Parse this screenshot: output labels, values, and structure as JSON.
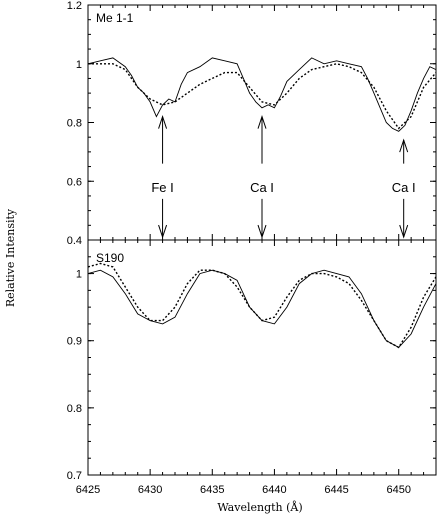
{
  "chart_data": {
    "type": "line",
    "xlabel": "Wavelength (Å)",
    "ylabel": "Relative Intensity",
    "x_ticks": [
      6425,
      6430,
      6435,
      6440,
      6445,
      6450
    ],
    "xlim": [
      6425,
      6453
    ],
    "colors": {
      "axes": "#000000",
      "observed": "#000000",
      "model": "#000000"
    },
    "panels": [
      {
        "label": "Me 1-1",
        "ylim": [
          0.4,
          1.2
        ],
        "y_ticks": [
          "0.4",
          "0.6",
          "0.8",
          "1",
          "1.2"
        ],
        "series": [
          {
            "style": "solid",
            "x": [
              6425,
              6426,
              6427,
              6428,
              6428.5,
              6429,
              6429.5,
              6430,
              6430.5,
              6431,
              6431.5,
              6432,
              6432.5,
              6433,
              6434,
              6435,
              6436,
              6437,
              6437.5,
              6438,
              6438.5,
              6439,
              6439.5,
              6440,
              6440.5,
              6441,
              6442,
              6443,
              6444,
              6445,
              6446,
              6447,
              6447.5,
              6448,
              6448.5,
              6449,
              6449.5,
              6450,
              6450.5,
              6451,
              6451.5,
              6452,
              6452.5,
              6453
            ],
            "y": [
              1.0,
              1.01,
              1.02,
              0.99,
              0.96,
              0.92,
              0.9,
              0.87,
              0.82,
              0.86,
              0.88,
              0.87,
              0.93,
              0.97,
              0.99,
              1.02,
              1.01,
              1.0,
              0.95,
              0.9,
              0.87,
              0.85,
              0.86,
              0.85,
              0.89,
              0.94,
              0.98,
              1.02,
              1.0,
              1.01,
              1.0,
              0.99,
              0.95,
              0.9,
              0.85,
              0.8,
              0.78,
              0.77,
              0.79,
              0.84,
              0.9,
              0.95,
              0.99,
              0.98
            ]
          },
          {
            "style": "dotted",
            "x": [
              6425,
              6427,
              6428,
              6429,
              6430,
              6431,
              6432,
              6433,
              6434,
              6435,
              6436,
              6437,
              6438,
              6439,
              6440,
              6441,
              6442,
              6443,
              6444,
              6445,
              6446,
              6447,
              6448,
              6449,
              6450,
              6451,
              6452,
              6453
            ],
            "y": [
              1.0,
              1.0,
              0.98,
              0.92,
              0.88,
              0.86,
              0.87,
              0.9,
              0.93,
              0.95,
              0.97,
              0.97,
              0.92,
              0.87,
              0.86,
              0.9,
              0.95,
              0.98,
              0.99,
              1.0,
              0.99,
              0.97,
              0.92,
              0.84,
              0.78,
              0.82,
              0.92,
              0.97
            ]
          }
        ],
        "arrows_up": [
          {
            "x": 6431,
            "tip": 0.82,
            "tail": 0.66
          },
          {
            "x": 6439,
            "tip": 0.82,
            "tail": 0.66
          },
          {
            "x": 6450.4,
            "tip": 0.74,
            "tail": 0.66
          }
        ],
        "arrows_down": [
          {
            "x": 6431,
            "tail": 0.54,
            "tip": 0.41
          },
          {
            "x": 6439,
            "tail": 0.54,
            "tip": 0.41
          },
          {
            "x": 6450.4,
            "tail": 0.54,
            "tip": 0.41
          }
        ],
        "line_labels": [
          {
            "x": 6431,
            "y": 0.58,
            "text": "Fe I"
          },
          {
            "x": 6439,
            "y": 0.58,
            "text": "Ca I"
          },
          {
            "x": 6450.4,
            "y": 0.58,
            "text": "Ca I"
          }
        ]
      },
      {
        "label": "S190",
        "ylim": [
          0.7,
          1.05
        ],
        "y_ticks": [
          "0.7",
          "0.8",
          "0.9",
          "1"
        ],
        "series": [
          {
            "style": "solid",
            "x": [
              6425,
              6426,
              6427,
              6428,
              6429,
              6430,
              6431,
              6432,
              6433,
              6434,
              6435,
              6436,
              6437,
              6438,
              6439,
              6440,
              6441,
              6442,
              6443,
              6444,
              6445,
              6446,
              6447,
              6448,
              6449,
              6450,
              6451,
              6452,
              6453
            ],
            "y": [
              1.0,
              1.005,
              0.995,
              0.97,
              0.94,
              0.93,
              0.925,
              0.935,
              0.97,
              1.0,
              1.005,
              1.0,
              0.99,
              0.95,
              0.93,
              0.925,
              0.95,
              0.985,
              1.0,
              1.005,
              1.0,
              0.995,
              0.97,
              0.93,
              0.9,
              0.89,
              0.91,
              0.95,
              0.985
            ]
          },
          {
            "style": "dotted",
            "x": [
              6425,
              6426,
              6427,
              6428,
              6429,
              6430,
              6431,
              6432,
              6433,
              6434,
              6435,
              6436,
              6437,
              6438,
              6439,
              6440,
              6441,
              6442,
              6443,
              6444,
              6445,
              6446,
              6447,
              6448,
              6449,
              6450,
              6451,
              6452,
              6453
            ],
            "y": [
              1.01,
              1.015,
              1.01,
              0.98,
              0.95,
              0.93,
              0.93,
              0.95,
              0.985,
              1.005,
              1.005,
              1.0,
              0.98,
              0.95,
              0.93,
              0.935,
              0.965,
              0.99,
              1.0,
              1.0,
              0.995,
              0.985,
              0.96,
              0.93,
              0.9,
              0.89,
              0.92,
              0.965,
              0.995
            ]
          }
        ]
      }
    ]
  }
}
